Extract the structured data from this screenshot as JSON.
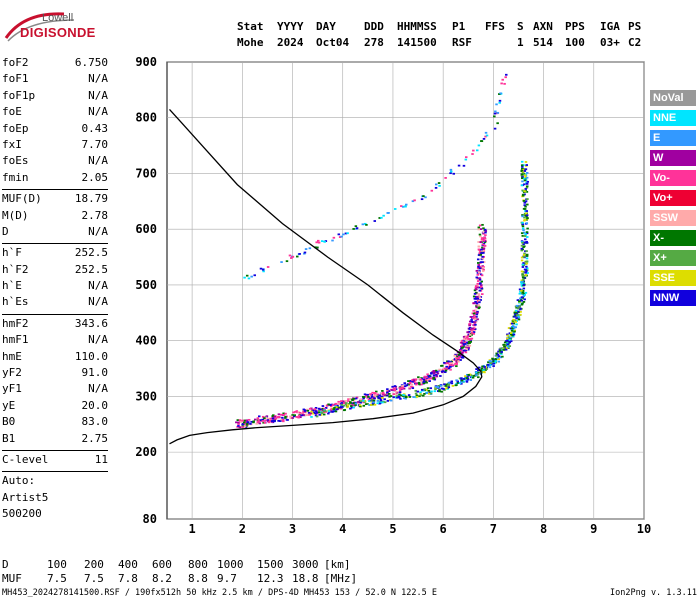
{
  "logo": {
    "top_text": "Lowell",
    "main_text": "DIGISONDE"
  },
  "header": {
    "labels": [
      "Stat",
      "YYYY",
      "DAY",
      "DDD",
      "HHMMSS",
      "P1",
      "FFS",
      "S",
      "AXN",
      "PPS",
      "IGA",
      "PS"
    ],
    "values": [
      "Mohe",
      "2024",
      "Oct04",
      "278",
      "141500",
      "RSF",
      "",
      "1",
      "514",
      "100",
      "03+",
      "C2"
    ]
  },
  "params": [
    [
      [
        "foF2",
        "6.750"
      ],
      [
        "foF1",
        "N/A"
      ],
      [
        "foF1p",
        "N/A"
      ],
      [
        "foE",
        "N/A"
      ],
      [
        "foEp",
        "0.43"
      ],
      [
        "fxI",
        "7.70"
      ],
      [
        "foEs",
        "N/A"
      ],
      [
        "fmin",
        "2.05"
      ]
    ],
    [
      [
        "MUF(D)",
        "18.79"
      ],
      [
        "M(D)",
        "2.78"
      ],
      [
        "D",
        "N/A"
      ]
    ],
    [
      [
        "h`F",
        "252.5"
      ],
      [
        "h`F2",
        "252.5"
      ],
      [
        "h`E",
        "N/A"
      ],
      [
        "h`Es",
        "N/A"
      ]
    ],
    [
      [
        "hmF2",
        "343.6"
      ],
      [
        "hmF1",
        "N/A"
      ],
      [
        "hmE",
        "110.0"
      ],
      [
        "yF2",
        "91.0"
      ],
      [
        "yF1",
        "N/A"
      ],
      [
        "yE",
        "20.0"
      ],
      [
        "B0",
        "83.0"
      ],
      [
        "B1",
        "2.75"
      ]
    ],
    [
      [
        "C-level",
        "11"
      ]
    ]
  ],
  "auto": [
    "Auto:",
    "Artist5",
    "500200"
  ],
  "legend": [
    {
      "label": "NoVal",
      "color": "#999999"
    },
    {
      "label": "NNE",
      "color": "#00e5ff"
    },
    {
      "label": "E",
      "color": "#3399ff"
    },
    {
      "label": "W",
      "color": "#a000a0"
    },
    {
      "label": "Vo-",
      "color": "#ff3399"
    },
    {
      "label": "Vo+",
      "color": "#ee0033"
    },
    {
      "label": "SSW",
      "color": "#ffaaaa"
    },
    {
      "label": "X-",
      "color": "#007700"
    },
    {
      "label": "X+",
      "color": "#55aa44"
    },
    {
      "label": "SSE",
      "color": "#dddd00"
    },
    {
      "label": "NNW",
      "color": "#1100dd"
    }
  ],
  "muf_table": {
    "row1_label": "D",
    "row1": [
      "100",
      "200",
      "400",
      "600",
      "800",
      "1000",
      "1500",
      "3000"
    ],
    "row1_unit": "[km]",
    "row2_label": "MUF",
    "row2": [
      "7.5",
      "7.5",
      "7.8",
      "8.2",
      "8.8",
      "9.7",
      "12.3",
      "18.8"
    ],
    "row2_unit": "[MHz]"
  },
  "footer": {
    "left": "MH453_2024278141500.RSF / 190fx512h 50 kHz 2.5 km / DPS-4D MH453 153 / 52.0 N 122.5 E",
    "right": "Ion2Png v. 1.3.11"
  },
  "chart_data": {
    "type": "scatter",
    "x_ticks": [
      1,
      2,
      3,
      4,
      5,
      6,
      7,
      8,
      9,
      10
    ],
    "y_ticks": [
      80,
      200,
      300,
      400,
      500,
      600,
      700,
      800,
      900
    ],
    "xlim": [
      0.5,
      10
    ],
    "ylim": [
      80,
      900
    ],
    "grid": true,
    "o_trace": [
      [
        1.9,
        252
      ],
      [
        2.2,
        257
      ],
      [
        2.6,
        262
      ],
      [
        3.0,
        268
      ],
      [
        3.4,
        275
      ],
      [
        3.8,
        283
      ],
      [
        4.2,
        292
      ],
      [
        4.6,
        302
      ],
      [
        5.0,
        313
      ],
      [
        5.4,
        325
      ],
      [
        5.7,
        336
      ],
      [
        6.0,
        350
      ],
      [
        6.2,
        365
      ],
      [
        6.35,
        382
      ],
      [
        6.45,
        400
      ],
      [
        6.55,
        425
      ],
      [
        6.62,
        455
      ],
      [
        6.68,
        490
      ],
      [
        6.72,
        530
      ],
      [
        6.75,
        570
      ],
      [
        6.75,
        610
      ]
    ],
    "x_trace": [
      [
        3.4,
        270
      ],
      [
        4.0,
        282
      ],
      [
        4.6,
        292
      ],
      [
        5.2,
        302
      ],
      [
        5.8,
        313
      ],
      [
        6.2,
        325
      ],
      [
        6.6,
        340
      ],
      [
        6.9,
        358
      ],
      [
        7.1,
        375
      ],
      [
        7.25,
        395
      ],
      [
        7.35,
        420
      ],
      [
        7.45,
        450
      ],
      [
        7.55,
        480
      ],
      [
        7.6,
        520
      ],
      [
        7.6,
        560
      ],
      [
        7.6,
        620
      ],
      [
        7.6,
        680
      ],
      [
        7.6,
        720
      ]
    ],
    "multi_trace": [
      [
        1.9,
        508
      ],
      [
        2.6,
        540
      ],
      [
        3.2,
        560
      ],
      [
        3.6,
        580
      ],
      [
        4.2,
        600
      ],
      [
        4.8,
        625
      ],
      [
        5.4,
        650
      ],
      [
        6.0,
        690
      ],
      [
        6.6,
        740
      ],
      [
        7.0,
        790
      ],
      [
        7.1,
        840
      ],
      [
        7.2,
        880
      ]
    ],
    "profile_curve": [
      [
        0.55,
        215
      ],
      [
        0.7,
        222
      ],
      [
        0.95,
        230
      ],
      [
        1.3,
        235
      ],
      [
        1.8,
        240
      ],
      [
        2.3,
        244
      ],
      [
        3.0,
        248
      ],
      [
        3.8,
        253
      ],
      [
        4.6,
        260
      ],
      [
        5.4,
        270
      ],
      [
        6.0,
        285
      ],
      [
        6.4,
        300
      ],
      [
        6.65,
        318
      ],
      [
        6.77,
        335
      ],
      [
        6.75,
        345
      ],
      [
        6.6,
        360
      ],
      [
        6.3,
        380
      ],
      [
        5.8,
        410
      ],
      [
        5.2,
        450
      ],
      [
        4.5,
        500
      ],
      [
        3.7,
        550
      ],
      [
        2.8,
        610
      ],
      [
        1.9,
        680
      ],
      [
        1.2,
        750
      ],
      [
        0.8,
        790
      ],
      [
        0.55,
        815
      ]
    ]
  }
}
